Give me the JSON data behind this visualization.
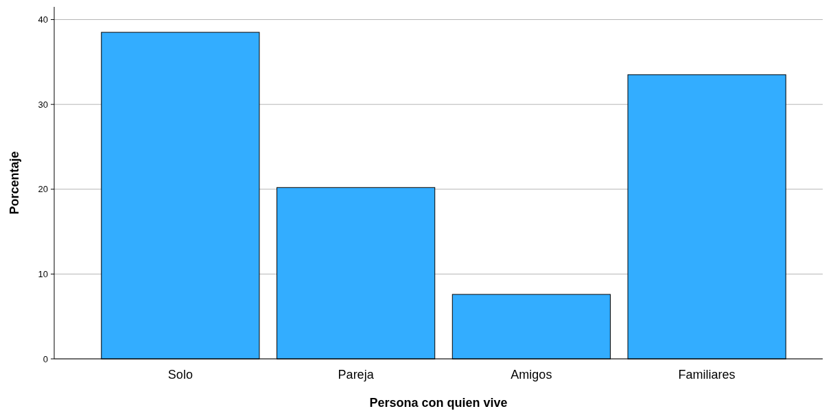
{
  "chart_data": {
    "type": "bar",
    "xlabel": "Persona con quien vive",
    "ylabel": "Porcentaje",
    "categories": [
      "Solo",
      "Pareja",
      "Amigos",
      "Familiares"
    ],
    "values": [
      38.5,
      20.2,
      7.6,
      33.5
    ],
    "color": "#33adff",
    "ylim": [
      0,
      41.5
    ],
    "yticks": [
      0,
      10,
      20,
      30,
      40
    ],
    "grid": "y"
  }
}
